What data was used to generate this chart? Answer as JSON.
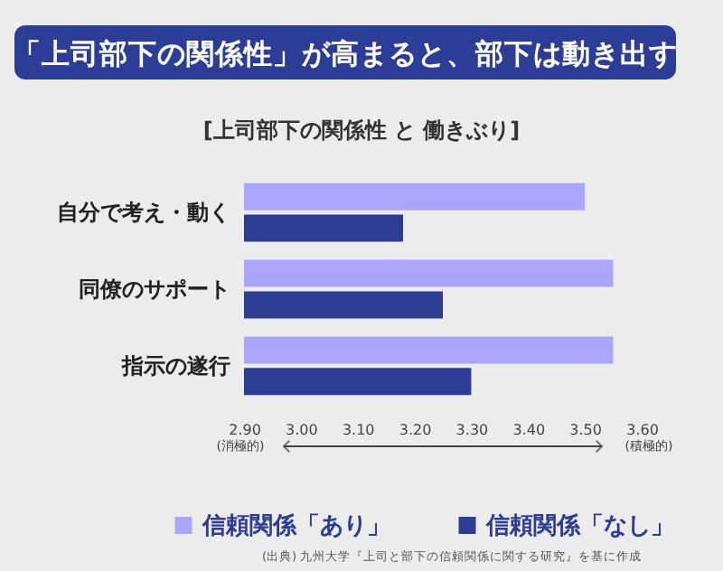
{
  "chart_data": {
    "type": "bar",
    "orientation": "horizontal",
    "title": "「上司部下の関係性」が高まると、部下は動き出す",
    "subtitle": "[上司部下の関係性 と 働きぶり]",
    "categories": [
      "自分で考え・動く",
      "同僚のサポート",
      "指示の遂行"
    ],
    "series": [
      {
        "name": "信頼関係「あり」",
        "color": "#a9a6fb",
        "values": [
          3.5,
          3.55,
          3.55
        ]
      },
      {
        "name": "信頼関係「なし」",
        "color": "#2e3d94",
        "values": [
          3.18,
          3.25,
          3.3
        ]
      }
    ],
    "xlim": [
      2.9,
      3.6
    ],
    "xticks": [
      {
        "value": 2.9,
        "label": "2.90"
      },
      {
        "value": 3.0,
        "label": "3.00"
      },
      {
        "value": 3.1,
        "label": "3.10"
      },
      {
        "value": 3.2,
        "label": "3.20"
      },
      {
        "value": 3.3,
        "label": "3.30"
      },
      {
        "value": 3.4,
        "label": "3.40"
      },
      {
        "value": 3.5,
        "label": "3.50"
      },
      {
        "value": 3.6,
        "label": "3.60"
      }
    ],
    "annotations": [
      "(消極的)",
      "(積極的)",
      "(出典) 九州大学『上司と部下の信頼関係に関する研究』を基に作成"
    ],
    "grid": false,
    "legend": "bottom"
  }
}
